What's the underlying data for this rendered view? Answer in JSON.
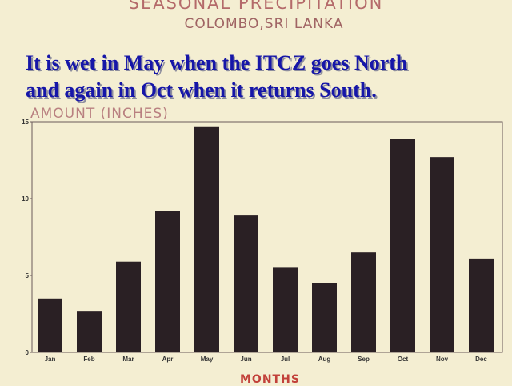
{
  "header": {
    "title": "SEASONAL PRECIPITATION",
    "subtitle": "COLOMBO,SRI LANKA"
  },
  "overlay": {
    "line1": "It is wet in May when the ITCZ goes North",
    "line2": "and again in Oct when it returns South."
  },
  "colors": {
    "background": "#f4eed2",
    "bar": "#2a2024",
    "overlay_text": "#1616a8"
  },
  "chart_data": {
    "type": "bar",
    "title": "SEASONAL PRECIPITATION",
    "subtitle": "COLOMBO,SRI LANKA",
    "xlabel": "MONTHS",
    "ylabel": "AMOUNT  (INCHES)",
    "categories": [
      "Jan",
      "Feb",
      "Mar",
      "Apr",
      "May",
      "Jun",
      "Jul",
      "Aug",
      "Sep",
      "Oct",
      "Nov",
      "Dec"
    ],
    "values": [
      3.5,
      2.7,
      5.9,
      9.2,
      14.7,
      8.9,
      5.5,
      4.5,
      6.5,
      13.9,
      12.7,
      6.1
    ],
    "ylim": [
      0,
      15
    ],
    "yticks": [
      "0",
      "5",
      "10",
      "15"
    ],
    "grid": false,
    "legend": "none"
  }
}
